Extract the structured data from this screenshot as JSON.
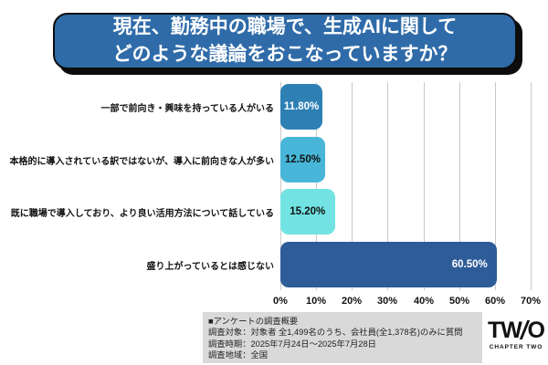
{
  "title": {
    "line1": "現在、勤務中の職場で、生成AIに関して",
    "line2": "どのような議論をおこなっていますか？"
  },
  "chart_data": {
    "type": "bar",
    "orientation": "horizontal",
    "title": "現在、勤務中の職場で、生成AIに関してどのような議論をおこなっていますか？",
    "categories": [
      "一部で前向き・興味を持っている人がいる",
      "本格的に導入されている訳ではないが、導入に前向きな人が多い",
      "既に職場で導入しており、より良い活用方法について話している",
      "盛り上がっているとは感じない"
    ],
    "values": [
      11.8,
      12.5,
      15.2,
      60.5
    ],
    "value_labels": [
      "11.80%",
      "12.50%",
      "15.20%",
      "60.50%"
    ],
    "bar_colors": [
      "#2e80b4",
      "#47b6d8",
      "#72e3e2",
      "#2e5c99"
    ],
    "value_label_colors": [
      "#ffffff",
      "#111111",
      "#111111",
      "#ffffff"
    ],
    "x_ticks": [
      "0%",
      "10%",
      "20%",
      "30%",
      "40%",
      "50%",
      "60%",
      "70%"
    ],
    "xlim": [
      0,
      70
    ],
    "xlabel": "",
    "ylabel": "",
    "grid": true,
    "legend": false
  },
  "footer": {
    "heading": "■アンケートの調査概要",
    "lines": [
      "調査対象：対象者 全1,499名のうち、会社員(全1,378名)のみに質問",
      "調査時期：2025年7月24日～2025年7月28日",
      "調査地域：全国"
    ]
  },
  "logo": {
    "mark_left": "TW",
    "mark_right": "O",
    "caption": "CHAPTER TWO"
  },
  "colors": {
    "title_background": "#2f6ba8",
    "title_text": "#ffffff",
    "title_border": "#0d0d0d",
    "gridline": "#c9c9c9",
    "footer_background": "#d9d9d9",
    "page_background": "#ffffff"
  }
}
